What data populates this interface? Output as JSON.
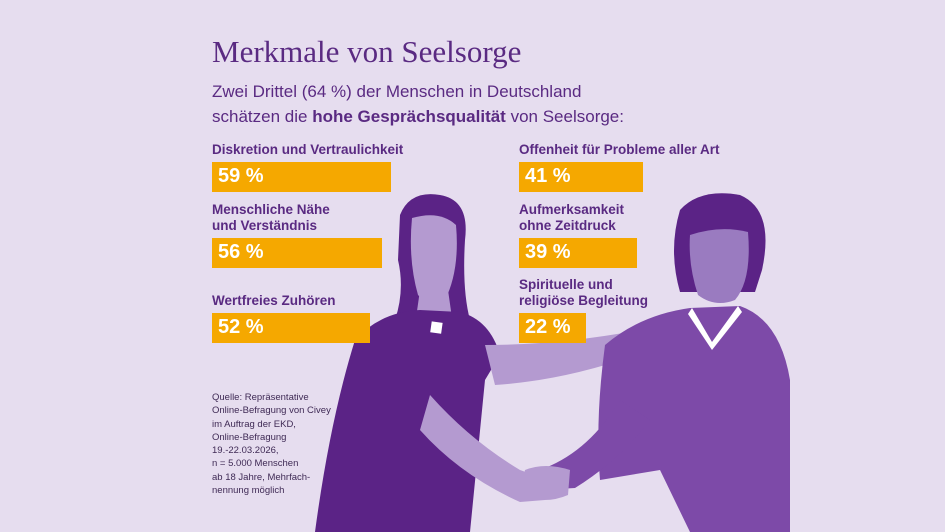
{
  "header": {
    "title": "Merkmale von Seelsorge",
    "subtitle_line1": "Zwei Drittel (64 %) der Menschen in Deutschland",
    "subtitle_line2_pre": "schätzen die ",
    "subtitle_line2_bold": "hohe Gesprächsqualität",
    "subtitle_line2_post": " von Seelsorge:"
  },
  "chart_data": {
    "type": "bar",
    "unit": "%",
    "items": [
      {
        "label_lines": [
          "Diskretion und Vertraulichkeit"
        ],
        "value": 59,
        "value_label": "59 %"
      },
      {
        "label_lines": [
          "Menschliche Nähe",
          "und Verständnis"
        ],
        "value": 56,
        "value_label": "56 %"
      },
      {
        "label_lines": [
          "Wertfreies Zuhören"
        ],
        "value": 52,
        "value_label": "52 %"
      },
      {
        "label_lines": [
          "Offenheit für Probleme aller Art"
        ],
        "value": 41,
        "value_label": "41 %"
      },
      {
        "label_lines": [
          "Aufmerksamkeit",
          "ohne Zeitdruck"
        ],
        "value": 39,
        "value_label": "39 %"
      },
      {
        "label_lines": [
          "Spirituelle und",
          "religiöse Begleitung"
        ],
        "value": 22,
        "value_label": "22 %"
      }
    ],
    "bar_color": "#f5a800"
  },
  "source": "Quelle: Repräsentative\nOnline-Befragung von Civey\nim Auftrag der EKD,\nOnline-Befragung\n19.-22.03.2026,\nn = 5.000 Menschen\nab 18 Jahre, Mehrfach-\nnennung möglich",
  "colors": {
    "background": "#e6ddef",
    "title": "#5a2a82",
    "dark_purple": "#5b2386",
    "light_purple": "#b49ad0",
    "mid_purple": "#7d4aa8"
  }
}
